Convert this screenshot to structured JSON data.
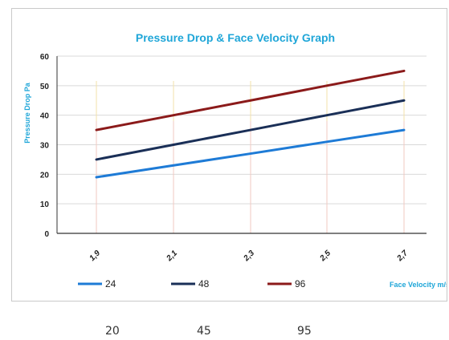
{
  "chart_data": {
    "type": "line",
    "title": "Pressure Drop  &  Face Velocity  Graph",
    "ylabel": "Pressure Drop  Pa",
    "xlabel": "Face Velocity  m/s",
    "x": [
      "1,9",
      "2,1",
      "2,3",
      "2,5",
      "2,7"
    ],
    "x_values": [
      1.9,
      2.1,
      2.3,
      2.5,
      2.7
    ],
    "ylim": [
      0,
      60
    ],
    "yticks": [
      "0",
      "10",
      "20",
      "30",
      "40",
      "50",
      "60"
    ],
    "ytick_values": [
      0,
      10,
      20,
      30,
      40,
      50,
      60
    ],
    "grid": true,
    "legend_position": "bottom",
    "series": [
      {
        "name": "24",
        "color": "#1e7bd6",
        "values": [
          19,
          23,
          27,
          31,
          35
        ]
      },
      {
        "name": "48",
        "color": "#1a2f57",
        "values": [
          25,
          30,
          35,
          40,
          45
        ]
      },
      {
        "name": "96",
        "color": "#8b1a1a",
        "values": [
          35,
          40,
          45,
          50,
          55
        ]
      }
    ]
  },
  "below_values": [
    "20",
    "45",
    "95"
  ]
}
